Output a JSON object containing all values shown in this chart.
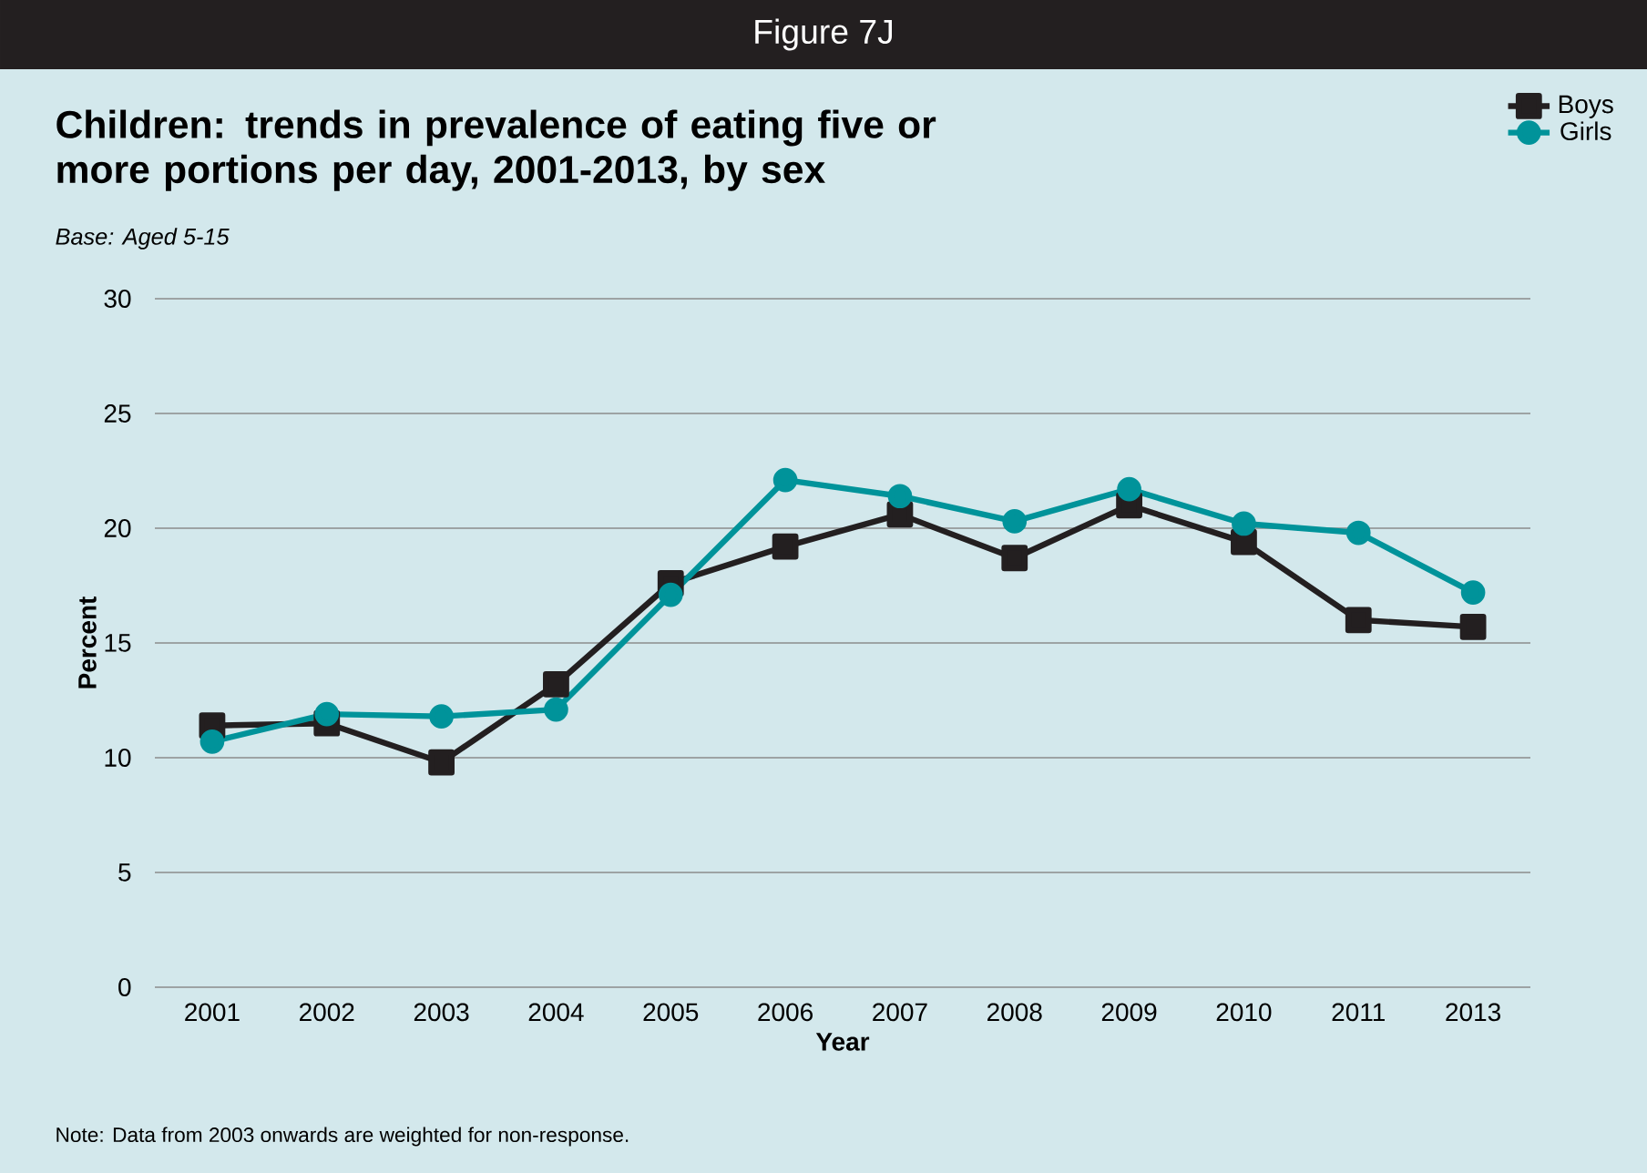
{
  "chart_data": {
    "type": "line",
    "title": "Figure 7J",
    "subtitle": "Children: trends in prevalence of eating five or more portions per day, 2001-2013, by sex",
    "annotations": [
      "Base: Aged 5-15",
      "Note: Data from 2003 onwards are weighted for non-response."
    ],
    "xlabel": "Year",
    "ylabel": "Percent",
    "categories": [
      "2001",
      "2002",
      "2003",
      "2004",
      "2005",
      "2006",
      "2007",
      "2008",
      "2009",
      "2010",
      "2011",
      "2013"
    ],
    "ylim": [
      0,
      30
    ],
    "yticks": [
      0,
      5,
      10,
      15,
      20,
      25,
      30
    ],
    "grid": "y",
    "legend": "top right",
    "series": [
      {
        "name": "Boys",
        "color": "#231f20",
        "marker": "square",
        "values": [
          11.4,
          11.5,
          9.8,
          13.2,
          17.6,
          19.2,
          20.6,
          18.7,
          21.0,
          19.4,
          16.0,
          15.7
        ]
      },
      {
        "name": "Girls",
        "color": "#00939a",
        "marker": "circle",
        "values": [
          10.7,
          11.9,
          11.8,
          12.1,
          17.1,
          22.1,
          21.4,
          20.3,
          21.7,
          20.2,
          19.8,
          17.2
        ]
      }
    ]
  }
}
